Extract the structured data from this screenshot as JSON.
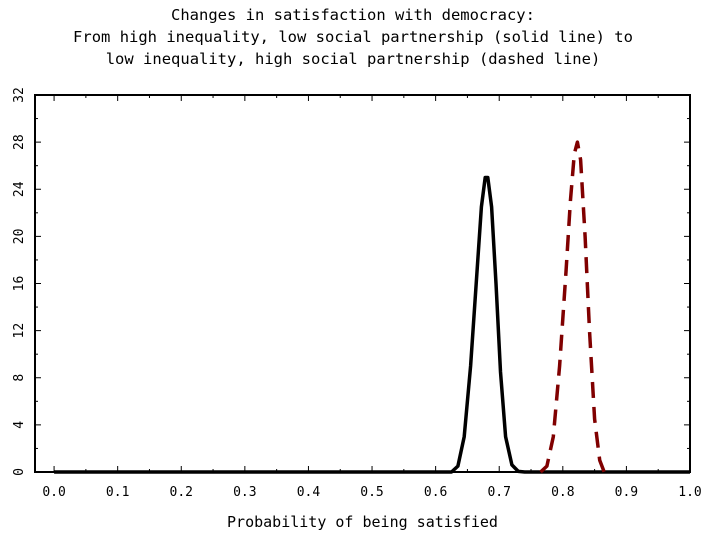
{
  "chart_data": {
    "type": "line",
    "title_lines": [
      "Changes in satisfaction with democracy:",
      "From high inequality, low social partnership (solid line) to",
      "low inequality, high social partnership (dashed line)"
    ],
    "xlabel": "Probability of being satisfied",
    "ylabel": "",
    "xlim": [
      -0.03,
      1.0
    ],
    "ylim": [
      0,
      32
    ],
    "x_ticks": [
      0.0,
      0.1,
      0.2,
      0.3,
      0.4,
      0.5,
      0.6,
      0.7,
      0.8,
      0.9,
      1.0
    ],
    "x_tick_labels": [
      "0.0",
      "0.1",
      "0.2",
      "0.3",
      "0.4",
      "0.5",
      "0.6",
      "0.7",
      "0.8",
      "0.9",
      "1.0"
    ],
    "y_ticks": [
      0,
      4,
      8,
      12,
      16,
      20,
      24,
      28,
      32
    ],
    "y_tick_labels": [
      "0",
      "4",
      "8",
      "12",
      "16",
      "20",
      "24",
      "28",
      "32"
    ],
    "grid": false,
    "series": [
      {
        "style": "solid",
        "color": "#000000",
        "x": [
          0.0,
          0.625,
          0.635,
          0.645,
          0.655,
          0.665,
          0.672,
          0.678,
          0.682,
          0.688,
          0.695,
          0.702,
          0.71,
          0.72,
          0.73,
          0.74,
          1.0
        ],
        "y": [
          0,
          0,
          0.5,
          3.0,
          9.0,
          17.0,
          22.5,
          25.0,
          25.0,
          22.5,
          16.0,
          8.5,
          3.0,
          0.6,
          0.05,
          0,
          0
        ]
      },
      {
        "style": "dashed",
        "color": "#800000",
        "x": [
          0.765,
          0.775,
          0.785,
          0.795,
          0.805,
          0.812,
          0.818,
          0.823,
          0.828,
          0.835,
          0.842,
          0.85,
          0.858,
          0.865
        ],
        "y": [
          0,
          0.5,
          3.0,
          9.0,
          17.0,
          23.0,
          27.0,
          28.0,
          26.5,
          20.0,
          12.0,
          4.5,
          1.0,
          0
        ]
      }
    ]
  }
}
